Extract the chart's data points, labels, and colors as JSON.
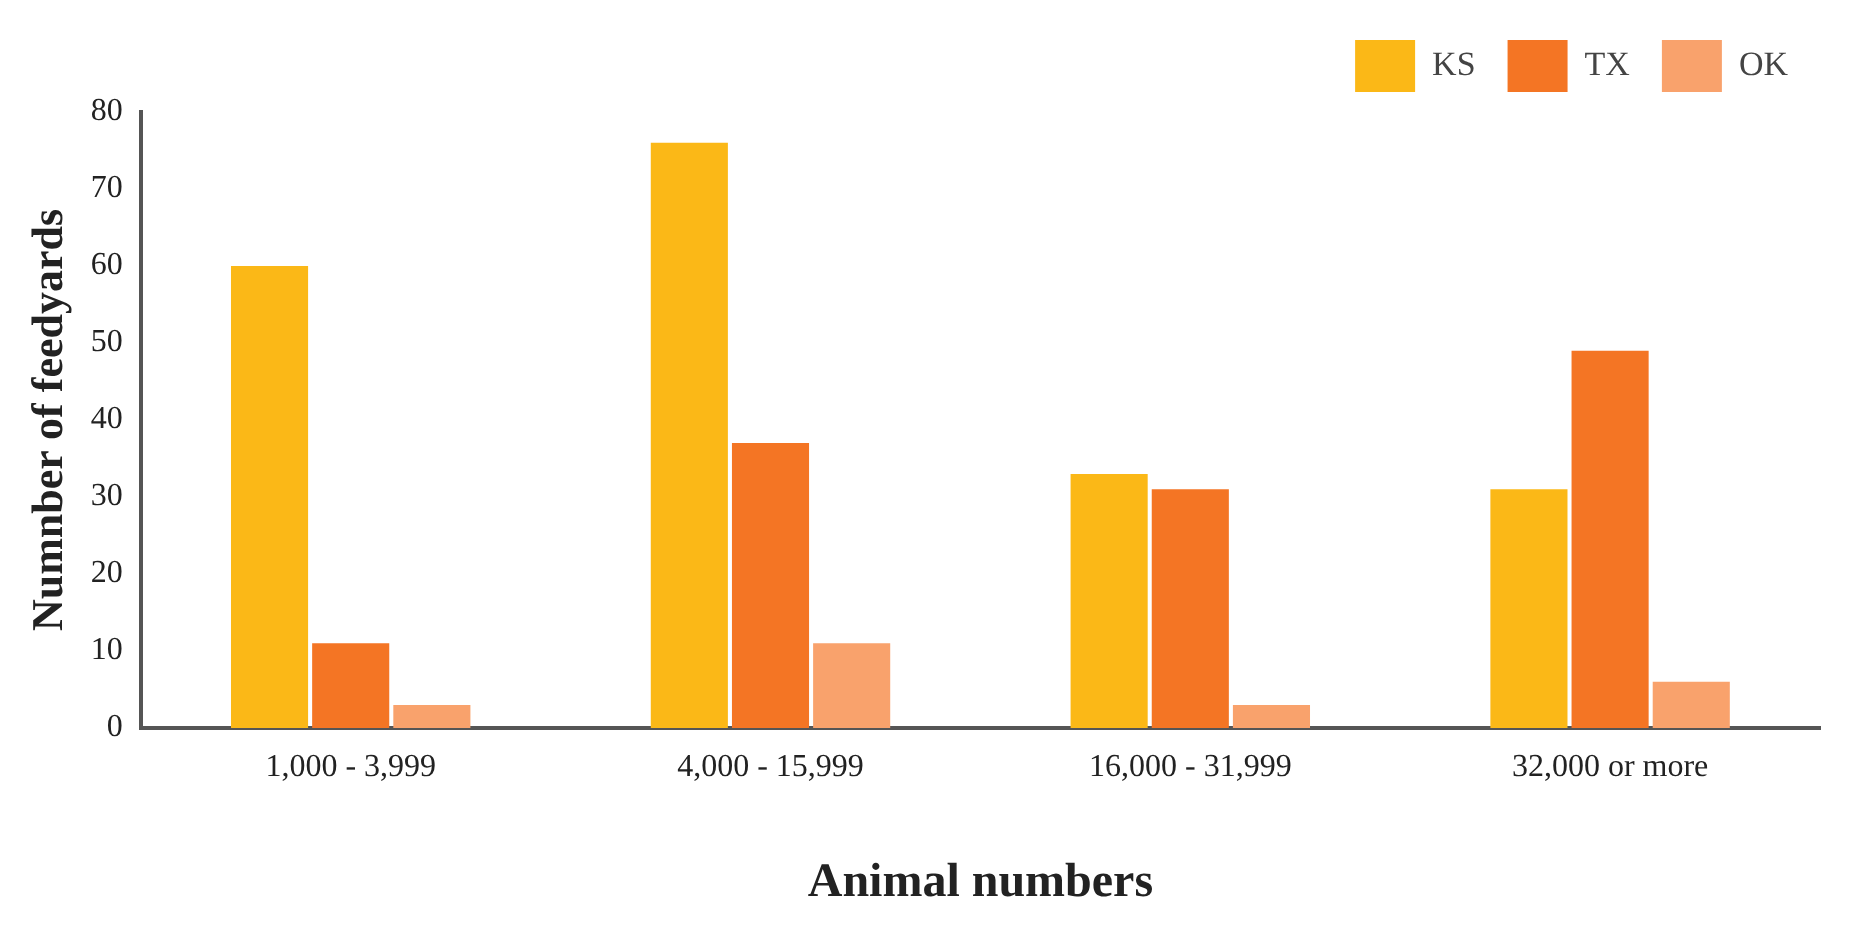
{
  "chart_data": {
    "type": "bar",
    "xlabel": "Animal numbers",
    "ylabel": "Numnber of feedyards",
    "categories": [
      "1,000 - 3,999",
      "4,000 - 15,999",
      "16,000 - 31,999",
      "32,000 or more"
    ],
    "series": [
      {
        "name": "KS",
        "color": "#fbb817",
        "values": [
          60,
          76,
          33,
          31
        ]
      },
      {
        "name": "TX",
        "color": "#f47524",
        "values": [
          11,
          37,
          31,
          49
        ]
      },
      {
        "name": "OK",
        "color": "#f9a26c",
        "values": [
          3,
          11,
          3,
          6
        ]
      }
    ],
    "ylim": [
      0,
      80
    ],
    "yticks": [
      0,
      10,
      20,
      30,
      40,
      50,
      60,
      70,
      80
    ],
    "grid": false,
    "legend": "top right"
  }
}
